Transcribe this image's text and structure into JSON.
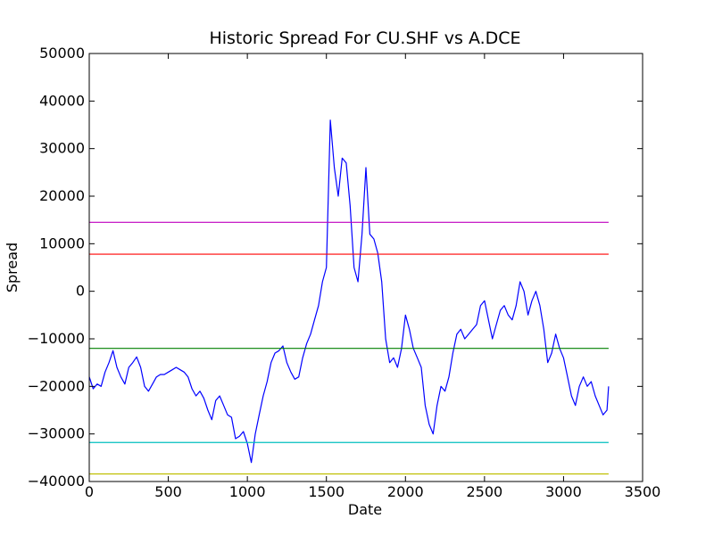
{
  "chart_data": {
    "type": "line",
    "title": "Historic Spread For CU.SHF vs A.DCE",
    "xlabel": "Date",
    "ylabel": "Spread",
    "xlim": [
      0,
      3500
    ],
    "ylim": [
      -40000,
      50000
    ],
    "x_ticks": [
      0,
      500,
      1000,
      1500,
      2000,
      2500,
      3000,
      3500
    ],
    "y_ticks": [
      -40000,
      -30000,
      -20000,
      -10000,
      0,
      10000,
      20000,
      30000,
      40000,
      50000
    ],
    "x_tick_labels": [
      "0",
      "500",
      "1000",
      "1500",
      "2000",
      "2500",
      "3000",
      "3500"
    ],
    "y_tick_labels": [
      "−40000",
      "−30000",
      "−20000",
      "−10000",
      "0",
      "10000",
      "20000",
      "30000",
      "40000",
      "50000"
    ],
    "grid": false,
    "series": [
      {
        "color": "#0000ff",
        "x": [
          0,
          25,
          50,
          75,
          100,
          125,
          150,
          175,
          200,
          225,
          250,
          275,
          300,
          325,
          350,
          375,
          400,
          425,
          450,
          475,
          500,
          525,
          550,
          575,
          600,
          625,
          650,
          675,
          700,
          725,
          750,
          775,
          800,
          825,
          850,
          875,
          900,
          925,
          950,
          975,
          1000,
          1025,
          1050,
          1075,
          1100,
          1125,
          1150,
          1175,
          1200,
          1225,
          1250,
          1275,
          1300,
          1325,
          1350,
          1375,
          1400,
          1425,
          1450,
          1475,
          1500,
          1525,
          1550,
          1575,
          1600,
          1625,
          1650,
          1675,
          1700,
          1725,
          1750,
          1775,
          1800,
          1825,
          1850,
          1875,
          1900,
          1925,
          1950,
          1975,
          2000,
          2025,
          2050,
          2075,
          2100,
          2125,
          2150,
          2175,
          2200,
          2225,
          2250,
          2275,
          2300,
          2325,
          2350,
          2375,
          2400,
          2425,
          2450,
          2475,
          2500,
          2525,
          2550,
          2575,
          2600,
          2625,
          2650,
          2675,
          2700,
          2725,
          2750,
          2775,
          2800,
          2825,
          2850,
          2875,
          2900,
          2925,
          2950,
          2975,
          3000,
          3025,
          3050,
          3075,
          3100,
          3125,
          3150,
          3175,
          3200,
          3225,
          3250,
          3275,
          3285
        ],
        "y": [
          -18000,
          -20500,
          -19500,
          -20000,
          -17000,
          -15000,
          -12500,
          -16000,
          -18000,
          -19500,
          -16000,
          -15000,
          -13800,
          -16000,
          -20000,
          -21000,
          -19500,
          -18000,
          -17500,
          -17500,
          -17000,
          -16500,
          -16000,
          -16500,
          -17000,
          -18000,
          -20500,
          -22000,
          -21000,
          -22500,
          -25000,
          -27000,
          -23000,
          -22000,
          -24000,
          -26000,
          -26500,
          -31000,
          -30500,
          -29500,
          -32000,
          -36000,
          -30000,
          -26000,
          -22000,
          -19000,
          -15000,
          -13000,
          -12500,
          -11500,
          -15000,
          -17000,
          -18500,
          -18000,
          -14000,
          -11000,
          -9000,
          -6000,
          -3000,
          2000,
          5000,
          36000,
          26000,
          20000,
          28000,
          27000,
          18000,
          5000,
          2000,
          12000,
          26000,
          12000,
          11000,
          8000,
          2000,
          -10000,
          -15000,
          -14000,
          -16000,
          -12000,
          -5000,
          -8000,
          -12000,
          -14000,
          -16000,
          -24000,
          -28000,
          -30000,
          -24000,
          -20000,
          -21000,
          -18000,
          -13000,
          -9000,
          -8000,
          -10000,
          -9000,
          -8000,
          -7000,
          -3000,
          -2000,
          -6000,
          -10000,
          -7000,
          -4000,
          -3000,
          -5000,
          -6000,
          -3000,
          2000,
          0,
          -5000,
          -2000,
          0,
          -3000,
          -8000,
          -15000,
          -13000,
          -9000,
          -12000,
          -14000,
          -18000,
          -22000,
          -24000,
          -20000,
          -18000,
          -20000,
          -19000,
          -22000,
          -24000,
          -26000,
          -25000,
          -20000
        ]
      }
    ],
    "hlines": [
      {
        "y": 14500,
        "color": "#bf00bf"
      },
      {
        "y": 7800,
        "color": "#ff0000"
      },
      {
        "y": -12000,
        "color": "#008000"
      },
      {
        "y": -31800,
        "color": "#00bfbf"
      },
      {
        "y": -38400,
        "color": "#bfbf00"
      }
    ]
  }
}
